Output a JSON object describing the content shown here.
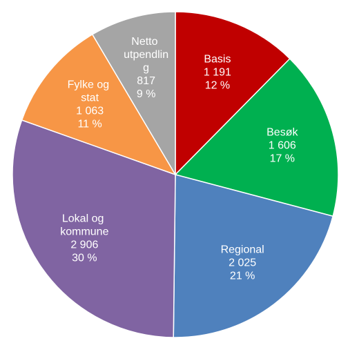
{
  "chart_data": {
    "type": "pie",
    "categories": [
      "Basis",
      "Besøk",
      "Regional",
      "Lokal og kommune",
      "Fylke og stat",
      "Netto utpendling"
    ],
    "values": [
      1191,
      1606,
      2025,
      2906,
      1063,
      817
    ],
    "value_labels": [
      "1 191",
      "1 606",
      "2 025",
      "2 906",
      "1 063",
      "817"
    ],
    "percent_labels": [
      "12 %",
      "17 %",
      "21 %",
      "30 %",
      "11 %",
      "9 %"
    ],
    "colors": [
      "#c00000",
      "#00b050",
      "#4f81bd",
      "#8064a2",
      "#f79646",
      "#a5a5a5"
    ]
  }
}
